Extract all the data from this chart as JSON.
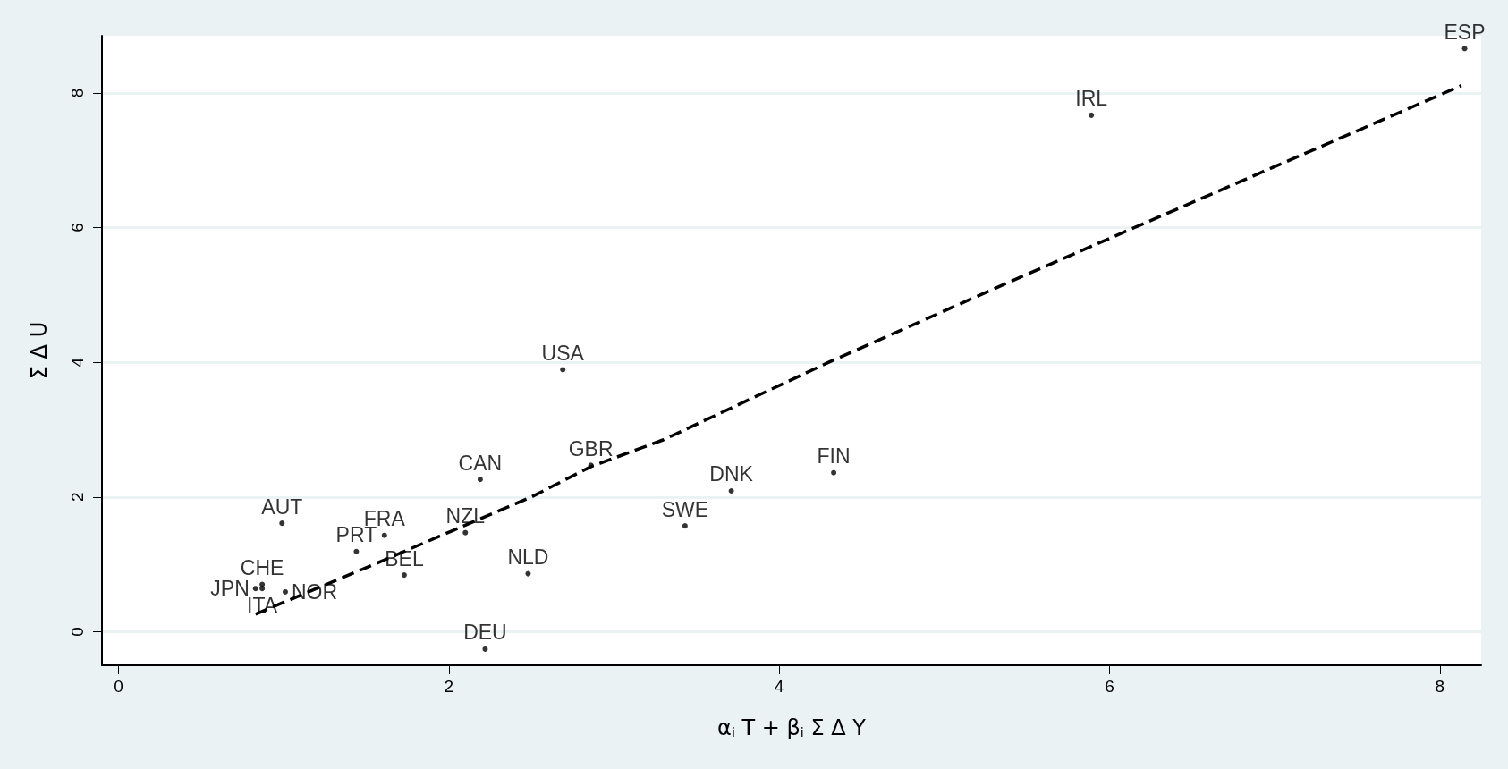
{
  "chart_data": {
    "type": "scatter",
    "xlabel": "α$_{i}$ T + β$_{i}$ Σ Δ Y",
    "ylabel": "Σ Δ U",
    "xlim": [
      -0.1,
      8.25
    ],
    "ylim": [
      -0.5,
      8.85
    ],
    "xticks": [
      0,
      2,
      4,
      6,
      8
    ],
    "yticks": [
      0,
      2,
      4,
      6,
      8
    ],
    "grid": "y",
    "legend": false,
    "marker": "circle",
    "series": [
      {
        "name": "ESP",
        "color": "#000000",
        "x": [
          8.15
        ],
        "values": [
          8.66
        ]
      },
      {
        "name": "IRL",
        "color": "#000000",
        "x": [
          5.89
        ],
        "values": [
          7.67
        ]
      },
      {
        "name": "USA",
        "color": "#000000",
        "x": [
          2.69
        ],
        "values": [
          3.89
        ]
      },
      {
        "name": "GBR",
        "color": "#000000",
        "x": [
          2.86
        ],
        "values": [
          2.47
        ]
      },
      {
        "name": "CAN",
        "color": "#000000",
        "x": [
          2.19
        ],
        "values": [
          2.26
        ]
      },
      {
        "name": "FIN",
        "color": "#000000",
        "x": [
          4.33
        ],
        "values": [
          2.36
        ]
      },
      {
        "name": "DNK",
        "color": "#000000",
        "x": [
          3.71
        ],
        "values": [
          2.09
        ]
      },
      {
        "name": "SWE",
        "color": "#000000",
        "x": [
          3.43
        ],
        "values": [
          1.57
        ]
      },
      {
        "name": "NZL",
        "color": "#000000",
        "x": [
          2.1
        ],
        "values": [
          1.47
        ]
      },
      {
        "name": "FRA",
        "color": "#000000",
        "x": [
          1.61
        ],
        "values": [
          1.43
        ]
      },
      {
        "name": "PRT",
        "color": "#000000",
        "x": [
          1.44
        ],
        "values": [
          1.19
        ]
      },
      {
        "name": "AUT",
        "color": "#000000",
        "x": [
          0.99
        ],
        "values": [
          1.61
        ]
      },
      {
        "name": "BEL",
        "color": "#000000",
        "x": [
          1.73
        ],
        "values": [
          0.84
        ]
      },
      {
        "name": "NLD",
        "color": "#000000",
        "x": [
          2.48
        ],
        "values": [
          0.86
        ]
      },
      {
        "name": "DEU",
        "color": "#000000",
        "x": [
          2.22
        ],
        "values": [
          -0.26
        ]
      },
      {
        "name": "NOR",
        "color": "#000000",
        "x": [
          1.01
        ],
        "values": [
          0.59
        ]
      },
      {
        "name": "CHE",
        "color": "#000000",
        "x": [
          0.87
        ],
        "values": [
          0.7
        ]
      },
      {
        "name": "JPN",
        "color": "#000000",
        "x": [
          0.83
        ],
        "values": [
          0.64
        ]
      },
      {
        "name": "ITA",
        "color": "#000000",
        "x": [
          0.87
        ],
        "values": [
          0.64
        ]
      },
      {
        "type": "line",
        "line_style": "dashed",
        "marker": "none",
        "color": "#000000",
        "x": [
          0.83,
          1.5,
          2.5,
          2.86,
          3.3,
          4.3,
          5.4,
          6.9,
          8.13
        ],
        "values": [
          0.26,
          0.95,
          2.0,
          2.45,
          2.85,
          4.0,
          5.2,
          6.8,
          8.11
        ]
      }
    ]
  }
}
